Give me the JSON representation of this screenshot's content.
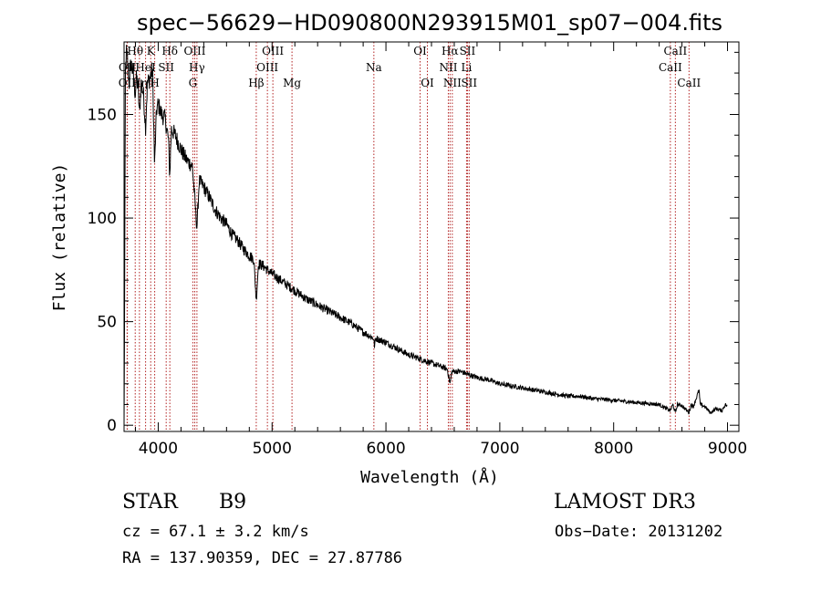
{
  "chart_data": {
    "type": "line",
    "title": "spec−56629−HD090800N293915M01_sp07−004.fits",
    "xlabel": "Wavelength (Å)",
    "ylabel": "Flux (relative)",
    "xlim": [
      3700,
      9100
    ],
    "ylim": [
      -3,
      185
    ],
    "x_ticks": [
      4000,
      5000,
      6000,
      7000,
      8000,
      9000
    ],
    "y_ticks": [
      0,
      50,
      100,
      150
    ],
    "series": [
      {
        "name": "spectrum",
        "points": [
          [
            3700,
            0
          ],
          [
            3705,
            60
          ],
          [
            3712,
            170
          ],
          [
            3720,
            180
          ],
          [
            3730,
            176
          ],
          [
            3745,
            165
          ],
          [
            3760,
            175
          ],
          [
            3780,
            170
          ],
          [
            3798,
            160
          ],
          [
            3810,
            168
          ],
          [
            3825,
            162
          ],
          [
            3835,
            150
          ],
          [
            3850,
            165
          ],
          [
            3870,
            160
          ],
          [
            3889,
            144
          ],
          [
            3905,
            165
          ],
          [
            3930,
            168
          ],
          [
            3950,
            172
          ],
          [
            3968,
            125
          ],
          [
            3985,
            152
          ],
          [
            4000,
            155
          ],
          [
            4030,
            150
          ],
          [
            4060,
            148
          ],
          [
            4090,
            138
          ],
          [
            4101,
            120
          ],
          [
            4115,
            143
          ],
          [
            4150,
            140
          ],
          [
            4200,
            133
          ],
          [
            4250,
            128
          ],
          [
            4300,
            125
          ],
          [
            4340,
            95
          ],
          [
            4360,
            118
          ],
          [
            4400,
            115
          ],
          [
            4450,
            110
          ],
          [
            4500,
            104
          ],
          [
            4550,
            100
          ],
          [
            4600,
            97
          ],
          [
            4650,
            92
          ],
          [
            4700,
            89
          ],
          [
            4750,
            85
          ],
          [
            4800,
            82
          ],
          [
            4840,
            80
          ],
          [
            4861,
            60
          ],
          [
            4880,
            78
          ],
          [
            4920,
            77
          ],
          [
            5000,
            73
          ],
          [
            5100,
            69
          ],
          [
            5200,
            65
          ],
          [
            5300,
            61
          ],
          [
            5400,
            58
          ],
          [
            5500,
            55
          ],
          [
            5600,
            52
          ],
          [
            5700,
            49
          ],
          [
            5800,
            45
          ],
          [
            5890,
            42
          ],
          [
            5900,
            38
          ],
          [
            5910,
            42
          ],
          [
            6000,
            40
          ],
          [
            6100,
            37
          ],
          [
            6200,
            34
          ],
          [
            6300,
            32
          ],
          [
            6400,
            30
          ],
          [
            6500,
            28
          ],
          [
            6540,
            27
          ],
          [
            6563,
            20
          ],
          [
            6580,
            26
          ],
          [
            6650,
            26
          ],
          [
            6700,
            25
          ],
          [
            6800,
            23
          ],
          [
            6900,
            22
          ],
          [
            7000,
            20
          ],
          [
            7100,
            19
          ],
          [
            7200,
            18
          ],
          [
            7300,
            17
          ],
          [
            7400,
            16
          ],
          [
            7500,
            15
          ],
          [
            7600,
            14
          ],
          [
            7700,
            14
          ],
          [
            7800,
            13
          ],
          [
            7900,
            12.5
          ],
          [
            8000,
            12
          ],
          [
            8100,
            11.5
          ],
          [
            8200,
            11
          ],
          [
            8300,
            10.5
          ],
          [
            8400,
            10
          ],
          [
            8498,
            7
          ],
          [
            8520,
            10
          ],
          [
            8542,
            6
          ],
          [
            8560,
            10
          ],
          [
            8600,
            9.5
          ],
          [
            8662,
            6
          ],
          [
            8680,
            10
          ],
          [
            8700,
            9
          ],
          [
            8750,
            17
          ],
          [
            8760,
            10
          ],
          [
            8800,
            9
          ],
          [
            8850,
            6
          ],
          [
            8900,
            8
          ],
          [
            8950,
            7
          ],
          [
            8980,
            10
          ],
          [
            9000,
            9
          ]
        ]
      }
    ],
    "lines": [
      {
        "label": "OII",
        "wave": 3727,
        "row": 3
      },
      {
        "label": "OII",
        "wave": 3729,
        "row": 2
      },
      {
        "label": "Hθ",
        "wave": 3798,
        "row": 1
      },
      {
        "label": "Hη",
        "wave": 3835,
        "row": 3
      },
      {
        "label": "HeI",
        "wave": 3889,
        "row": 2
      },
      {
        "label": "K",
        "wave": 3934,
        "row": 1
      },
      {
        "label": "H",
        "wave": 3969,
        "row": 3
      },
      {
        "label": "SII",
        "wave": 4070,
        "row": 2
      },
      {
        "label": "Hδ",
        "wave": 4102,
        "row": 1
      },
      {
        "label": "G",
        "wave": 4304,
        "row": 3
      },
      {
        "label": "OIII",
        "wave": 4321,
        "row": 1
      },
      {
        "label": "Hγ",
        "wave": 4340,
        "row": 2
      },
      {
        "label": "Hβ",
        "wave": 4861,
        "row": 3
      },
      {
        "label": "OIII",
        "wave": 4959,
        "row": 2
      },
      {
        "label": "OIII",
        "wave": 5007,
        "row": 1
      },
      {
        "label": "Mg",
        "wave": 5175,
        "row": 3
      },
      {
        "label": "Na",
        "wave": 5894,
        "row": 2
      },
      {
        "label": "OI",
        "wave": 6300,
        "row": 1
      },
      {
        "label": "OI",
        "wave": 6364,
        "row": 3
      },
      {
        "label": "NII",
        "wave": 6548,
        "row": 2
      },
      {
        "label": "Hα",
        "wave": 6563,
        "row": 1
      },
      {
        "label": "NII",
        "wave": 6583,
        "row": 3
      },
      {
        "label": "SII",
        "wave": 6716,
        "row": 1
      },
      {
        "label": "Li",
        "wave": 6708,
        "row": 2
      },
      {
        "label": "SII",
        "wave": 6731,
        "row": 3
      },
      {
        "label": "CaII",
        "wave": 8498,
        "row": 2
      },
      {
        "label": "CaII",
        "wave": 8542,
        "row": 1
      },
      {
        "label": "CaII",
        "wave": 8662,
        "row": 3
      }
    ]
  },
  "info": {
    "object_class": "STAR",
    "subclass": "B9",
    "survey": "LAMOST DR3",
    "cz": "cz = 67.1 ± 3.2 km/s",
    "obs_date": "Obs−Date: 20131202",
    "coords": "RA = 137.90359, DEC =  27.87786"
  },
  "colors": {
    "spectrum": "#000000",
    "line_markers": "#b22222",
    "axes": "#000000"
  }
}
